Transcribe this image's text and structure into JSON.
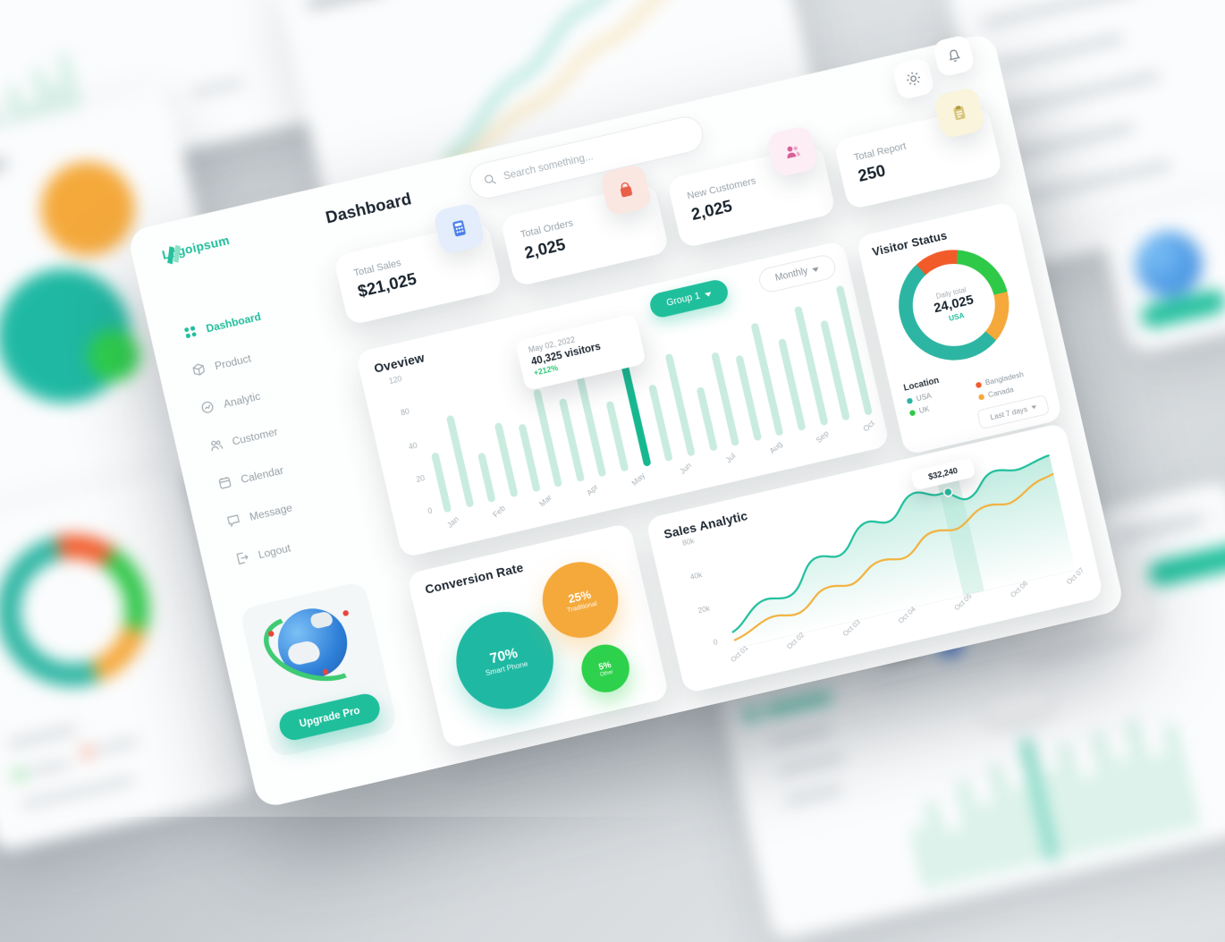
{
  "app": {
    "title": "Dashboard"
  },
  "brand": {
    "name": "Logoipsum"
  },
  "topbar": {
    "search_placeholder": "Search something...",
    "icons": [
      "search-icon",
      "gear-icon",
      "bell-icon"
    ]
  },
  "sidebar": {
    "items": [
      {
        "label": "Dashboard",
        "icon": "grid-dots-icon",
        "active": true
      },
      {
        "label": "Product",
        "icon": "cube-icon",
        "active": false
      },
      {
        "label": "Analytic",
        "icon": "analytics-icon",
        "active": false
      },
      {
        "label": "Customer",
        "icon": "users-icon",
        "active": false
      },
      {
        "label": "Calendar",
        "icon": "calendar-icon",
        "active": false
      },
      {
        "label": "Message",
        "icon": "chat-icon",
        "active": false
      },
      {
        "label": "Logout",
        "icon": "logout-icon",
        "active": false
      }
    ],
    "upgrade_label": "Upgrade Pro"
  },
  "stats": {
    "cards": [
      {
        "label": "Total Sales",
        "value": "$21,025",
        "icon": "calculator-icon",
        "icon_bg": "#e3edfb",
        "icon_color": "#4a7fe8"
      },
      {
        "label": "Total Orders",
        "value": "2,025",
        "icon": "orders-icon",
        "icon_bg": "#fbe7e2",
        "icon_color": "#e8604a"
      },
      {
        "label": "New Customers",
        "value": "2,025",
        "icon": "customers-icon",
        "icon_bg": "#fdeef5",
        "icon_color": "#d85f9a"
      },
      {
        "label": "Total Report",
        "value": "250",
        "icon": "report-icon",
        "icon_bg": "#faf4dc",
        "icon_color": "#b09a3e"
      }
    ]
  },
  "overview": {
    "title": "Oveview",
    "group_dropdown": "Group 1",
    "period_dropdown": "Monthly"
  },
  "visitor_status": {
    "title": "Visitor Status",
    "legend_title": "Location",
    "legend": [
      {
        "label": "USA",
        "color": "#2cb5a2"
      },
      {
        "label": "Bangladesh",
        "color": "#f15b2a"
      },
      {
        "label": "UK",
        "color": "#2fc948"
      },
      {
        "label": "Canada",
        "color": "#f5a93b"
      }
    ],
    "range_dropdown": "Last 7 days"
  },
  "sales_analytic": {
    "title": "Sales Analytic"
  },
  "conversion": {
    "title": "Conversion Rate",
    "bubbles": [
      {
        "pct": "70%",
        "label": "Smart Phone"
      },
      {
        "pct": "25%",
        "label": "Traditional"
      },
      {
        "pct": "5%",
        "label": "Other"
      }
    ]
  },
  "chart_data": [
    {
      "id": "overview-bars",
      "type": "bar",
      "title": "Oveview",
      "categories": [
        "Jan",
        "Feb",
        "Mar",
        "Apr",
        "May",
        "Jun",
        "Jul",
        "Aug",
        "Sep",
        "Oct"
      ],
      "bars_per_category": 2,
      "values": [
        56,
        86,
        46,
        70,
        64,
        92,
        78,
        104,
        66,
        128,
        72,
        96,
        60,
        88,
        80,
        106,
        86,
        112,
        94,
        122
      ],
      "highlight_index": 9,
      "y_ticks": [
        0,
        20,
        40,
        80,
        120
      ],
      "tooltip": {
        "date": "May 02, 2022",
        "value": "40,325 visitors",
        "delta": "+212%"
      },
      "colors": {
        "bar": "#c9ecdf",
        "highlight": "#17b890"
      }
    },
    {
      "id": "sales-analytic",
      "type": "line",
      "title": "Sales Analytic",
      "x": [
        "Oct 01",
        "Oct 02",
        "Oct 03",
        "Oct 04",
        "Oct 05",
        "Oct 06",
        "Oct 07"
      ],
      "series": [
        {
          "name": "teal-line",
          "color": "#1fbf9c",
          "values": [
            24000,
            36000,
            44000,
            58000,
            62000,
            76000,
            80000
          ]
        },
        {
          "name": "orange-line",
          "color": "#f2b13c",
          "values": [
            18000,
            26000,
            34000,
            42000,
            48000,
            60000,
            66000
          ]
        }
      ],
      "y_ticks": [
        "0",
        "20k",
        "40k",
        "80k"
      ],
      "tooltip": {
        "label": "$32,240",
        "x": "Oct 05"
      }
    },
    {
      "id": "visitor-donut",
      "type": "pie",
      "title": "Visitor Status",
      "center": {
        "label": "Daily total",
        "value": "24,025",
        "sublabel": "USA"
      },
      "slices": [
        {
          "label": "Bangladesh",
          "value": 13,
          "color": "#f15b2a"
        },
        {
          "label": "UK",
          "value": 20,
          "color": "#2fc948"
        },
        {
          "label": "Canada",
          "value": 15,
          "color": "#f5a93b"
        },
        {
          "label": "USA",
          "value": 52,
          "color": "#2cb5a2"
        }
      ]
    },
    {
      "id": "conversion-bubbles",
      "type": "pie",
      "title": "Conversion Rate",
      "slices": [
        {
          "label": "Smart Phone",
          "value": 70,
          "color": "#1fb9a3"
        },
        {
          "label": "Traditional",
          "value": 25,
          "color": "#f5a93b"
        },
        {
          "label": "Other",
          "value": 5,
          "color": "#2ed14c"
        }
      ]
    }
  ]
}
